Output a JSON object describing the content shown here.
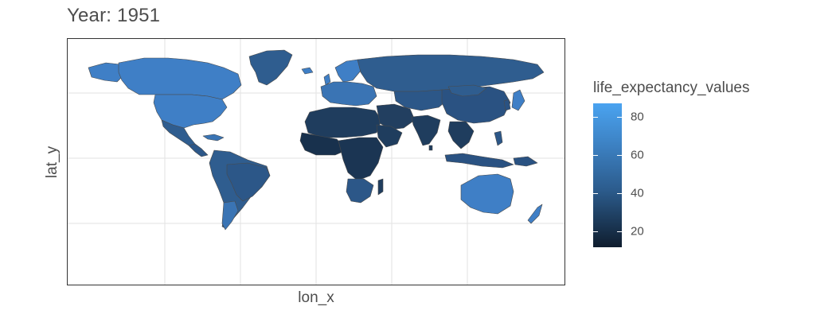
{
  "title": "Year: 1951",
  "axes": {
    "x_label": "lon_x",
    "y_label": "lat_y"
  },
  "legend": {
    "title": "life_expectancy_values",
    "range": [
      12,
      88
    ],
    "ticks": [
      {
        "label": "80",
        "value": 80
      },
      {
        "label": "60",
        "value": 60
      },
      {
        "label": "40",
        "value": 40
      },
      {
        "label": "20",
        "value": 20
      }
    ],
    "colors": {
      "low": "#0f1d2e",
      "high": "#4aa3f0"
    }
  },
  "map": {
    "projection": "equirectangular",
    "grid": true,
    "background": "#ffffff",
    "border_color": "#555555"
  }
}
